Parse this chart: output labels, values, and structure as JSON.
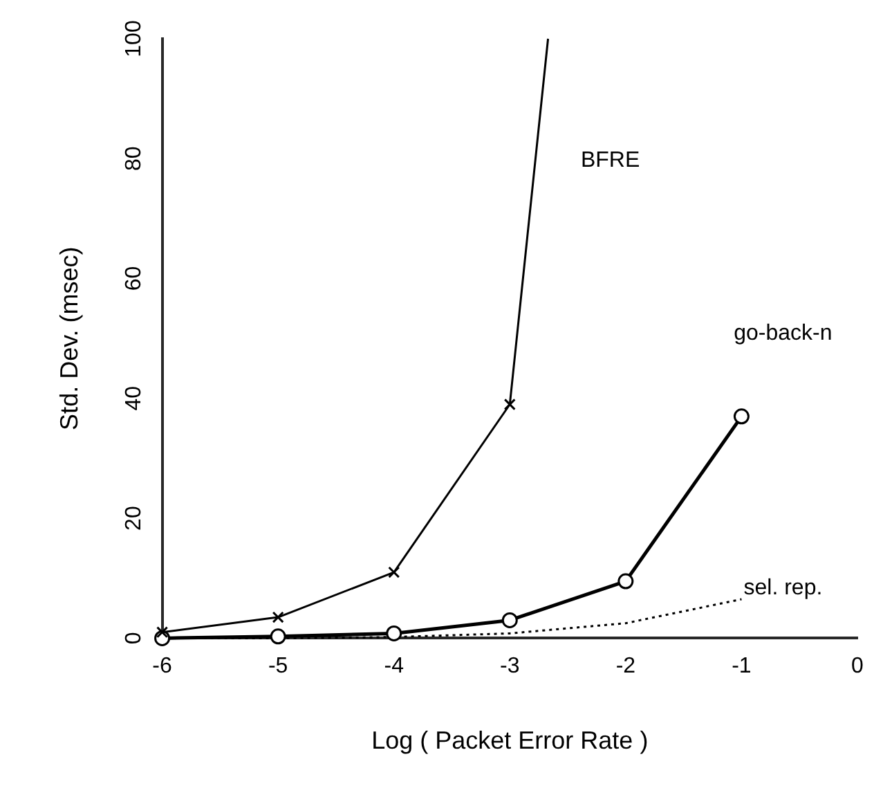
{
  "chart_data": {
    "type": "line",
    "xlabel": "Log ( Packet Error Rate )",
    "ylabel": "Std. Dev. (msec)",
    "x": [
      -6,
      -5,
      -4,
      -3,
      -2,
      -1
    ],
    "series": [
      {
        "name": "BFRE",
        "color": "#000000",
        "marker": "cross",
        "line_style": "solid",
        "x": [
          -6,
          -5,
          -4,
          -3,
          -2.67
        ],
        "values": [
          1,
          3.5,
          11,
          39,
          100
        ]
      },
      {
        "name": "go-back-n",
        "color": "#000000",
        "marker": "circle",
        "line_style": "solid",
        "values": [
          0,
          0.3,
          0.8,
          3,
          9.5,
          37
        ]
      },
      {
        "name": "sel. rep.",
        "color": "#000000",
        "marker": "none",
        "line_style": "dotted",
        "values": [
          0,
          0,
          0.2,
          0.8,
          2.5,
          6.5
        ]
      }
    ],
    "xlim": [
      -6,
      0
    ],
    "xticks": [
      -6,
      -5,
      -4,
      -3,
      -2,
      -1,
      0
    ],
    "ylim": [
      0,
      100
    ],
    "yticks": [
      0,
      20,
      40,
      60,
      80,
      100
    ],
    "grid": false,
    "legend": false
  }
}
